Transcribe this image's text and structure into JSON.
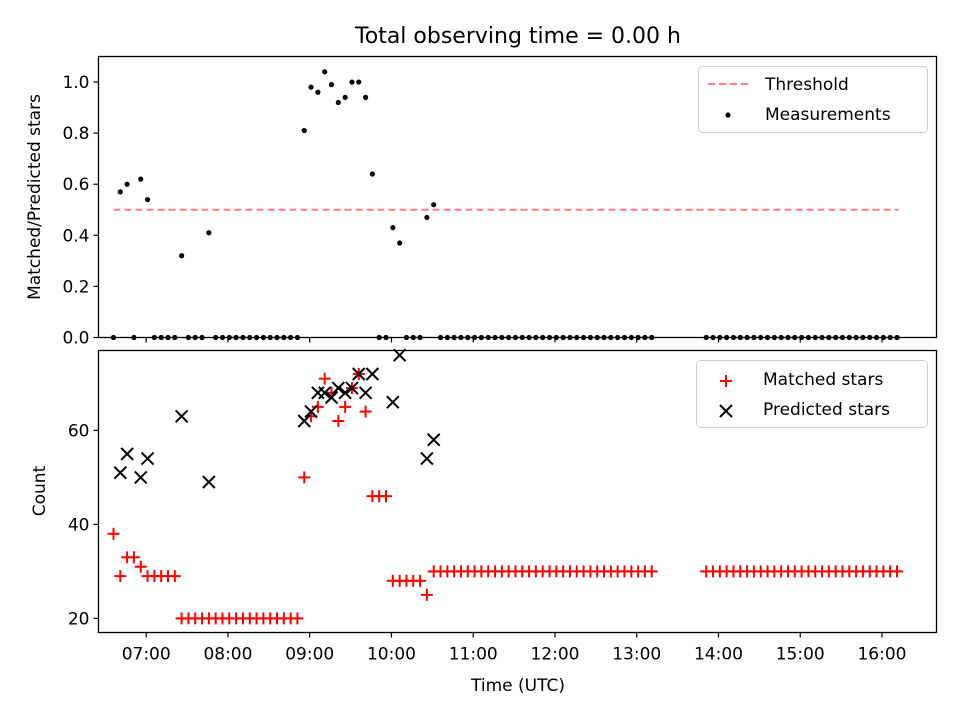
{
  "chart_data": [
    {
      "type": "scatter",
      "title": "Total observing time = 0.00 h",
      "ylabel": "Matched/Predicted stars",
      "xlabel": "",
      "xlim": [
        "06:25",
        "16:40"
      ],
      "ylim": [
        0,
        1.1
      ],
      "yticks": [
        "0.0",
        "0.2",
        "0.4",
        "0.6",
        "0.8",
        "1.0"
      ],
      "legend_position": "top-right",
      "series": [
        {
          "name": "Threshold",
          "style": "dashed-line",
          "color": "#ff7f7f",
          "points": [
            [
              "06:36",
              0.5
            ],
            [
              "16:12",
              0.5
            ]
          ]
        },
        {
          "name": "Measurements",
          "style": "dot",
          "color": "#000000",
          "points": [
            [
              "06:36",
              0.0
            ],
            [
              "06:41",
              0.57
            ],
            [
              "06:46",
              0.6
            ],
            [
              "06:51",
              0.0
            ],
            [
              "06:56",
              0.62
            ],
            [
              "07:01",
              0.54
            ],
            [
              "07:06",
              0.0
            ],
            [
              "07:11",
              0.0
            ],
            [
              "07:16",
              0.0
            ],
            [
              "07:21",
              0.0
            ],
            [
              "07:26",
              0.32
            ],
            [
              "07:31",
              0.0
            ],
            [
              "07:36",
              0.0
            ],
            [
              "07:41",
              0.0
            ],
            [
              "07:46",
              0.41
            ],
            [
              "07:51",
              0.0
            ],
            [
              "07:56",
              0.0
            ],
            [
              "08:01",
              0.0
            ],
            [
              "08:06",
              0.0
            ],
            [
              "08:11",
              0.0
            ],
            [
              "08:16",
              0.0
            ],
            [
              "08:21",
              0.0
            ],
            [
              "08:26",
              0.0
            ],
            [
              "08:31",
              0.0
            ],
            [
              "08:36",
              0.0
            ],
            [
              "08:41",
              0.0
            ],
            [
              "08:46",
              0.0
            ],
            [
              "08:51",
              0.0
            ],
            [
              "08:56",
              0.81
            ],
            [
              "09:01",
              0.98
            ],
            [
              "09:06",
              0.96
            ],
            [
              "09:11",
              1.04
            ],
            [
              "09:16",
              0.99
            ],
            [
              "09:21",
              0.92
            ],
            [
              "09:26",
              0.94
            ],
            [
              "09:31",
              1.0
            ],
            [
              "09:36",
              1.0
            ],
            [
              "09:41",
              0.94
            ],
            [
              "09:46",
              0.64
            ],
            [
              "09:51",
              0.0
            ],
            [
              "09:56",
              0.0
            ],
            [
              "10:01",
              0.43
            ],
            [
              "10:06",
              0.37
            ],
            [
              "10:11",
              0.0
            ],
            [
              "10:16",
              0.0
            ],
            [
              "10:21",
              0.0
            ],
            [
              "10:26",
              0.47
            ],
            [
              "10:31",
              0.52
            ],
            [
              "10:36",
              0.0
            ],
            [
              "10:41",
              0.0
            ],
            [
              "10:46",
              0.0
            ],
            [
              "10:51",
              0.0
            ],
            [
              "10:56",
              0.0
            ],
            [
              "11:01",
              0.0
            ],
            [
              "11:06",
              0.0
            ],
            [
              "11:11",
              0.0
            ],
            [
              "11:16",
              0.0
            ],
            [
              "11:21",
              0.0
            ],
            [
              "11:26",
              0.0
            ],
            [
              "11:31",
              0.0
            ],
            [
              "11:36",
              0.0
            ],
            [
              "11:41",
              0.0
            ],
            [
              "11:46",
              0.0
            ],
            [
              "11:51",
              0.0
            ],
            [
              "11:56",
              0.0
            ],
            [
              "12:01",
              0.0
            ],
            [
              "12:06",
              0.0
            ],
            [
              "12:11",
              0.0
            ],
            [
              "12:16",
              0.0
            ],
            [
              "12:21",
              0.0
            ],
            [
              "12:26",
              0.0
            ],
            [
              "12:31",
              0.0
            ],
            [
              "12:36",
              0.0
            ],
            [
              "12:41",
              0.0
            ],
            [
              "12:46",
              0.0
            ],
            [
              "12:51",
              0.0
            ],
            [
              "12:56",
              0.0
            ],
            [
              "13:01",
              0.0
            ],
            [
              "13:06",
              0.0
            ],
            [
              "13:11",
              0.0
            ],
            [
              "13:51",
              0.0
            ],
            [
              "13:56",
              0.0
            ],
            [
              "14:01",
              0.0
            ],
            [
              "14:06",
              0.0
            ],
            [
              "14:11",
              0.0
            ],
            [
              "14:16",
              0.0
            ],
            [
              "14:21",
              0.0
            ],
            [
              "14:26",
              0.0
            ],
            [
              "14:31",
              0.0
            ],
            [
              "14:36",
              0.0
            ],
            [
              "14:41",
              0.0
            ],
            [
              "14:46",
              0.0
            ],
            [
              "14:51",
              0.0
            ],
            [
              "14:56",
              0.0
            ],
            [
              "15:01",
              0.0
            ],
            [
              "15:06",
              0.0
            ],
            [
              "15:11",
              0.0
            ],
            [
              "15:16",
              0.0
            ],
            [
              "15:21",
              0.0
            ],
            [
              "15:26",
              0.0
            ],
            [
              "15:31",
              0.0
            ],
            [
              "15:36",
              0.0
            ],
            [
              "15:41",
              0.0
            ],
            [
              "15:46",
              0.0
            ],
            [
              "15:51",
              0.0
            ],
            [
              "15:56",
              0.0
            ],
            [
              "16:01",
              0.0
            ],
            [
              "16:06",
              0.0
            ],
            [
              "16:11",
              0.0
            ]
          ]
        }
      ]
    },
    {
      "type": "scatter",
      "title": "",
      "xlabel": "Time (UTC)",
      "ylabel": "Count",
      "xlim": [
        "06:25",
        "16:40"
      ],
      "ylim": [
        17,
        77
      ],
      "yticks": [
        "20",
        "40",
        "60"
      ],
      "xticks": [
        "07:00",
        "08:00",
        "09:00",
        "10:00",
        "11:00",
        "12:00",
        "13:00",
        "14:00",
        "15:00",
        "16:00"
      ],
      "legend_position": "top-right",
      "series": [
        {
          "name": "Matched stars",
          "style": "plus",
          "color": "#ff0000",
          "points": [
            [
              "06:36",
              38
            ],
            [
              "06:41",
              29
            ],
            [
              "06:46",
              33
            ],
            [
              "06:51",
              33
            ],
            [
              "06:56",
              31
            ],
            [
              "07:01",
              29
            ],
            [
              "07:06",
              29
            ],
            [
              "07:11",
              29
            ],
            [
              "07:16",
              29
            ],
            [
              "07:21",
              29
            ],
            [
              "07:26",
              20
            ],
            [
              "07:31",
              20
            ],
            [
              "07:36",
              20
            ],
            [
              "07:41",
              20
            ],
            [
              "07:46",
              20
            ],
            [
              "07:51",
              20
            ],
            [
              "07:56",
              20
            ],
            [
              "08:01",
              20
            ],
            [
              "08:06",
              20
            ],
            [
              "08:11",
              20
            ],
            [
              "08:16",
              20
            ],
            [
              "08:21",
              20
            ],
            [
              "08:26",
              20
            ],
            [
              "08:31",
              20
            ],
            [
              "08:36",
              20
            ],
            [
              "08:41",
              20
            ],
            [
              "08:46",
              20
            ],
            [
              "08:51",
              20
            ],
            [
              "08:56",
              50
            ],
            [
              "09:01",
              63
            ],
            [
              "09:06",
              65
            ],
            [
              "09:11",
              71
            ],
            [
              "09:16",
              68
            ],
            [
              "09:21",
              62
            ],
            [
              "09:26",
              65
            ],
            [
              "09:31",
              69
            ],
            [
              "09:36",
              72
            ],
            [
              "09:41",
              64
            ],
            [
              "09:46",
              46
            ],
            [
              "09:51",
              46
            ],
            [
              "09:56",
              46
            ],
            [
              "10:01",
              28
            ],
            [
              "10:06",
              28
            ],
            [
              "10:11",
              28
            ],
            [
              "10:16",
              28
            ],
            [
              "10:21",
              28
            ],
            [
              "10:26",
              25
            ],
            [
              "10:31",
              30
            ],
            [
              "10:36",
              30
            ],
            [
              "10:41",
              30
            ],
            [
              "10:46",
              30
            ],
            [
              "10:51",
              30
            ],
            [
              "10:56",
              30
            ],
            [
              "11:01",
              30
            ],
            [
              "11:06",
              30
            ],
            [
              "11:11",
              30
            ],
            [
              "11:16",
              30
            ],
            [
              "11:21",
              30
            ],
            [
              "11:26",
              30
            ],
            [
              "11:31",
              30
            ],
            [
              "11:36",
              30
            ],
            [
              "11:41",
              30
            ],
            [
              "11:46",
              30
            ],
            [
              "11:51",
              30
            ],
            [
              "11:56",
              30
            ],
            [
              "12:01",
              30
            ],
            [
              "12:06",
              30
            ],
            [
              "12:11",
              30
            ],
            [
              "12:16",
              30
            ],
            [
              "12:21",
              30
            ],
            [
              "12:26",
              30
            ],
            [
              "12:31",
              30
            ],
            [
              "12:36",
              30
            ],
            [
              "12:41",
              30
            ],
            [
              "12:46",
              30
            ],
            [
              "12:51",
              30
            ],
            [
              "12:56",
              30
            ],
            [
              "13:01",
              30
            ],
            [
              "13:06",
              30
            ],
            [
              "13:11",
              30
            ],
            [
              "13:51",
              30
            ],
            [
              "13:56",
              30
            ],
            [
              "14:01",
              30
            ],
            [
              "14:06",
              30
            ],
            [
              "14:11",
              30
            ],
            [
              "14:16",
              30
            ],
            [
              "14:21",
              30
            ],
            [
              "14:26",
              30
            ],
            [
              "14:31",
              30
            ],
            [
              "14:36",
              30
            ],
            [
              "14:41",
              30
            ],
            [
              "14:46",
              30
            ],
            [
              "14:51",
              30
            ],
            [
              "14:56",
              30
            ],
            [
              "15:01",
              30
            ],
            [
              "15:06",
              30
            ],
            [
              "15:11",
              30
            ],
            [
              "15:16",
              30
            ],
            [
              "15:21",
              30
            ],
            [
              "15:26",
              30
            ],
            [
              "15:31",
              30
            ],
            [
              "15:36",
              30
            ],
            [
              "15:41",
              30
            ],
            [
              "15:46",
              30
            ],
            [
              "15:51",
              30
            ],
            [
              "15:56",
              30
            ],
            [
              "16:01",
              30
            ],
            [
              "16:06",
              30
            ],
            [
              "16:11",
              30
            ]
          ]
        },
        {
          "name": "Predicted stars",
          "style": "x",
          "color": "#000000",
          "points": [
            [
              "06:41",
              51
            ],
            [
              "06:46",
              55
            ],
            [
              "06:56",
              50
            ],
            [
              "07:01",
              54
            ],
            [
              "07:26",
              63
            ],
            [
              "07:46",
              49
            ],
            [
              "08:56",
              62
            ],
            [
              "09:01",
              64
            ],
            [
              "09:06",
              68
            ],
            [
              "09:11",
              68
            ],
            [
              "09:16",
              67
            ],
            [
              "09:21",
              69
            ],
            [
              "09:26",
              68
            ],
            [
              "09:31",
              69
            ],
            [
              "09:36",
              72
            ],
            [
              "09:41",
              68
            ],
            [
              "09:46",
              72
            ],
            [
              "10:01",
              66
            ],
            [
              "10:06",
              76
            ],
            [
              "10:26",
              54
            ],
            [
              "10:31",
              58
            ]
          ]
        }
      ]
    }
  ]
}
